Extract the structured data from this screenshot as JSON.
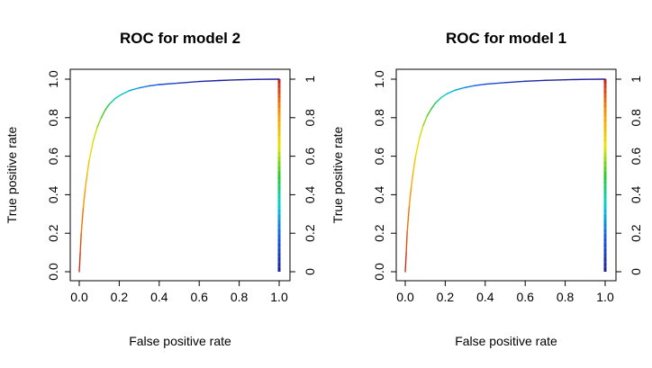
{
  "chart_data": [
    {
      "type": "line",
      "title": "ROC for model 2",
      "xlabel": "False positive rate",
      "ylabel": "True positive rate",
      "xlim": [
        0,
        1
      ],
      "ylim": [
        0,
        1
      ],
      "x_ticks": [
        "0.0",
        "0.2",
        "0.4",
        "0.6",
        "0.8",
        "1.0"
      ],
      "y_ticks": [
        "0.0",
        "0.2",
        "0.4",
        "0.6",
        "0.8",
        "1.0"
      ],
      "colorkey_ticks": [
        "0",
        "0.2",
        "0.4",
        "0.6",
        "0.8",
        "1"
      ],
      "colorkey_placement": "right",
      "grid": false,
      "series": [
        {
          "x": [
            0.0,
            0.005,
            0.01,
            0.02,
            0.03,
            0.04,
            0.05,
            0.07,
            0.09,
            0.11,
            0.13,
            0.15,
            0.18,
            0.21,
            0.25,
            0.3,
            0.35,
            0.4,
            0.5,
            0.6,
            0.7,
            0.8,
            0.9,
            1.0
          ],
          "y": [
            0.0,
            0.1,
            0.2,
            0.33,
            0.43,
            0.51,
            0.58,
            0.68,
            0.75,
            0.8,
            0.84,
            0.87,
            0.9,
            0.92,
            0.94,
            0.955,
            0.965,
            0.972,
            0.98,
            0.988,
            0.993,
            0.997,
            0.999,
            1.0
          ]
        }
      ]
    },
    {
      "type": "line",
      "title": "ROC for model 1",
      "xlabel": "False positive rate",
      "ylabel": "True positive rate",
      "xlim": [
        0,
        1
      ],
      "ylim": [
        0,
        1
      ],
      "x_ticks": [
        "0.0",
        "0.2",
        "0.4",
        "0.6",
        "0.8",
        "1.0"
      ],
      "y_ticks": [
        "0.0",
        "0.2",
        "0.4",
        "0.6",
        "0.8",
        "1.0"
      ],
      "colorkey_ticks": [
        "0",
        "0.2",
        "0.4",
        "0.6",
        "0.8",
        "1"
      ],
      "colorkey_placement": "right",
      "grid": false,
      "series": [
        {
          "x": [
            0.0,
            0.005,
            0.01,
            0.02,
            0.03,
            0.04,
            0.05,
            0.07,
            0.09,
            0.11,
            0.13,
            0.15,
            0.18,
            0.21,
            0.25,
            0.3,
            0.35,
            0.4,
            0.5,
            0.6,
            0.7,
            0.8,
            0.9,
            1.0
          ],
          "y": [
            0.0,
            0.1,
            0.21,
            0.34,
            0.44,
            0.52,
            0.59,
            0.69,
            0.76,
            0.81,
            0.845,
            0.875,
            0.905,
            0.925,
            0.943,
            0.957,
            0.967,
            0.974,
            0.982,
            0.989,
            0.994,
            0.997,
            0.999,
            1.0
          ]
        }
      ]
    }
  ]
}
